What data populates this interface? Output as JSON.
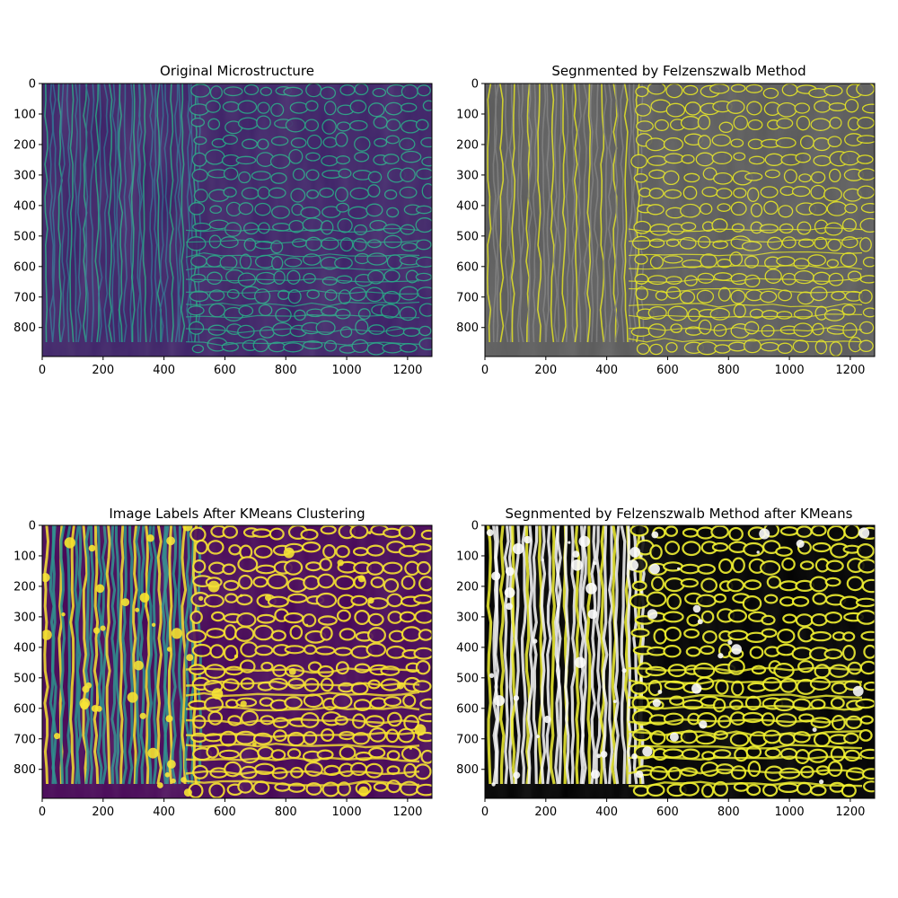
{
  "figure": {
    "panels": [
      {
        "title": "Original Microstructure",
        "style": "viridis",
        "colors": {
          "bg": "#3b1f66",
          "mid": "#2c6b8e",
          "line": "#22a884"
        }
      },
      {
        "title": "Segnmented by Felzenszwalb Method",
        "style": "gray-boundaries",
        "colors": {
          "bg": "#5a5a5a",
          "mid": "#7c7c7c",
          "line": "#e8e81a"
        }
      },
      {
        "title": "Image Labels After KMeans Clustering",
        "style": "kmeans-labels",
        "colors": {
          "bg": "#440154",
          "mid": "#21918c",
          "line": "#fde725"
        }
      },
      {
        "title": "Segnmented by Felzenszwalb Method after KMeans",
        "style": "black-yellow",
        "colors": {
          "bg": "#000000",
          "mid": "#ffffff",
          "line": "#f5f52a"
        }
      }
    ],
    "x_ticks": [
      "0",
      "200",
      "400",
      "600",
      "800",
      "1000",
      "1200"
    ],
    "x_tick_values": [
      0,
      200,
      400,
      600,
      800,
      1000,
      1200
    ],
    "x_max": 1280,
    "y_ticks": [
      "0",
      "100",
      "200",
      "300",
      "400",
      "500",
      "600",
      "700",
      "800"
    ],
    "y_tick_values": [
      0,
      100,
      200,
      300,
      400,
      500,
      600,
      700,
      800
    ],
    "y_max": 895
  }
}
